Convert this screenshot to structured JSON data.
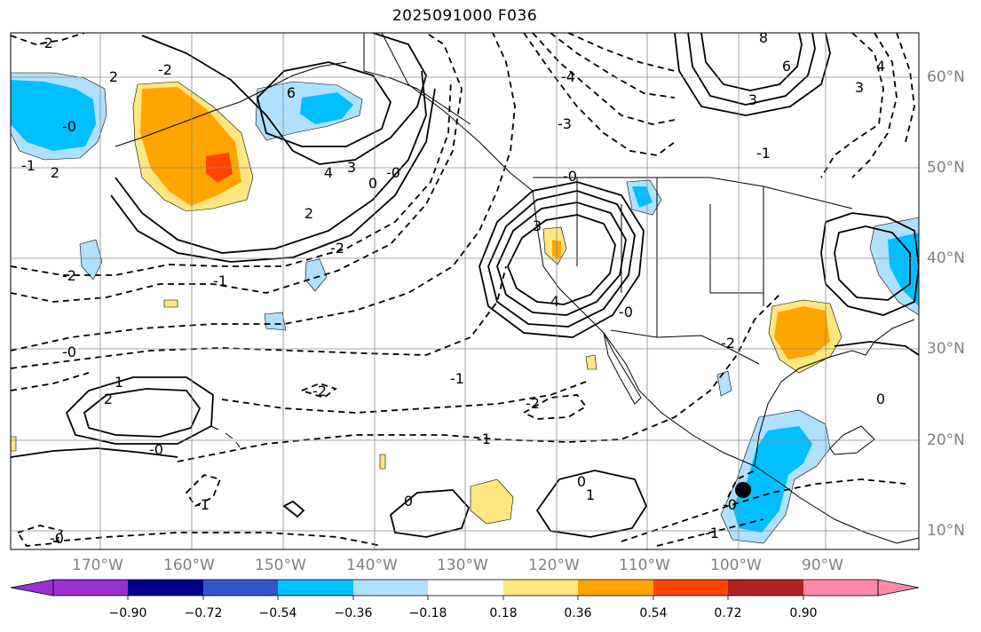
{
  "title": "2025091000 F036",
  "latitude_labels": [
    "60°N",
    "50°N",
    "40°N",
    "30°N",
    "20°N",
    "10°N"
  ],
  "longitude_labels": [
    "170°W",
    "160°W",
    "150°W",
    "140°W",
    "130°W",
    "120°W",
    "110°W",
    "100°W",
    "90°W"
  ],
  "colorbar": {
    "tick_labels": [
      "−0.90",
      "−0.72",
      "−0.54",
      "−0.36",
      "−0.18",
      "0.18",
      "0.36",
      "0.54",
      "0.72",
      "0.90"
    ],
    "colors": [
      "#9b30d0",
      "#00008b",
      "#3355cc",
      "#00bfff",
      "#b0e0ff",
      "#ffffff",
      "#ffe680",
      "#ffa500",
      "#ff4500",
      "#b22222",
      "#ff88aa"
    ]
  },
  "contour_labels": [
    {
      "text": "-2"
    },
    {
      "text": "2"
    },
    {
      "text": "-2"
    },
    {
      "text": "-0"
    },
    {
      "text": "2"
    },
    {
      "text": "-1"
    },
    {
      "text": "6"
    },
    {
      "text": "4"
    },
    {
      "text": "3"
    },
    {
      "text": "2"
    },
    {
      "text": "0"
    },
    {
      "text": "-0"
    },
    {
      "text": "-1"
    },
    {
      "text": "-2"
    },
    {
      "text": "-2"
    },
    {
      "text": "-0"
    },
    {
      "text": "2"
    },
    {
      "text": "1"
    },
    {
      "text": "-0"
    },
    {
      "text": "-3"
    },
    {
      "text": "-4"
    },
    {
      "text": "3"
    },
    {
      "text": "-0"
    },
    {
      "text": "-1"
    },
    {
      "text": "4"
    },
    {
      "text": "8"
    },
    {
      "text": "6"
    },
    {
      "text": "3"
    },
    {
      "text": "4"
    },
    {
      "text": "3"
    },
    {
      "text": "-1"
    },
    {
      "text": "-2"
    },
    {
      "text": "-2"
    },
    {
      "text": "-1"
    },
    {
      "text": "0"
    },
    {
      "text": "0"
    },
    {
      "text": "-0"
    },
    {
      "text": "1"
    },
    {
      "text": "-1"
    },
    {
      "text": "-0"
    },
    {
      "text": "-0"
    },
    {
      "text": "-2"
    },
    {
      "text": "0"
    },
    {
      "text": "-1"
    }
  ]
}
